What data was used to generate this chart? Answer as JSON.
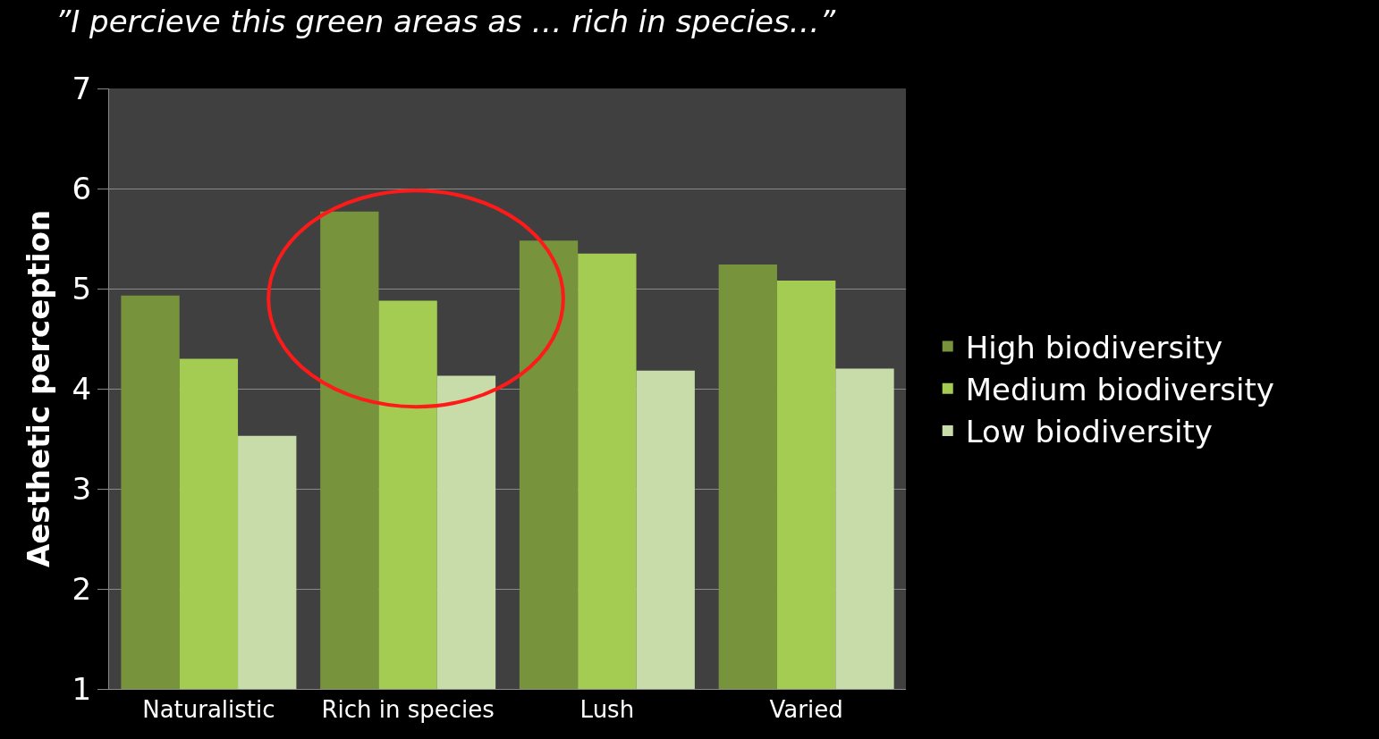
{
  "chart_data": {
    "type": "bar",
    "title": "”I percieve this green areas as … rich in species…”",
    "ylabel": "Aesthetic perception",
    "categories": [
      "Naturalistic",
      "Rich in species",
      "Lush",
      "Varied"
    ],
    "series": [
      {
        "name": "High biodiversity",
        "color": "#77933c",
        "values": [
          4.93,
          5.77,
          5.48,
          5.24
        ]
      },
      {
        "name": "Medium biodiversity",
        "color": "#a4cc52",
        "values": [
          4.3,
          4.88,
          5.35,
          5.08
        ]
      },
      {
        "name": "Low biodiversity",
        "color": "#c8dcaa",
        "values": [
          3.53,
          4.13,
          4.18,
          4.2
        ]
      }
    ],
    "ylim": [
      1,
      7
    ],
    "yticks": [
      1,
      2,
      3,
      4,
      5,
      6,
      7
    ],
    "grid": "y",
    "legend": "right"
  }
}
